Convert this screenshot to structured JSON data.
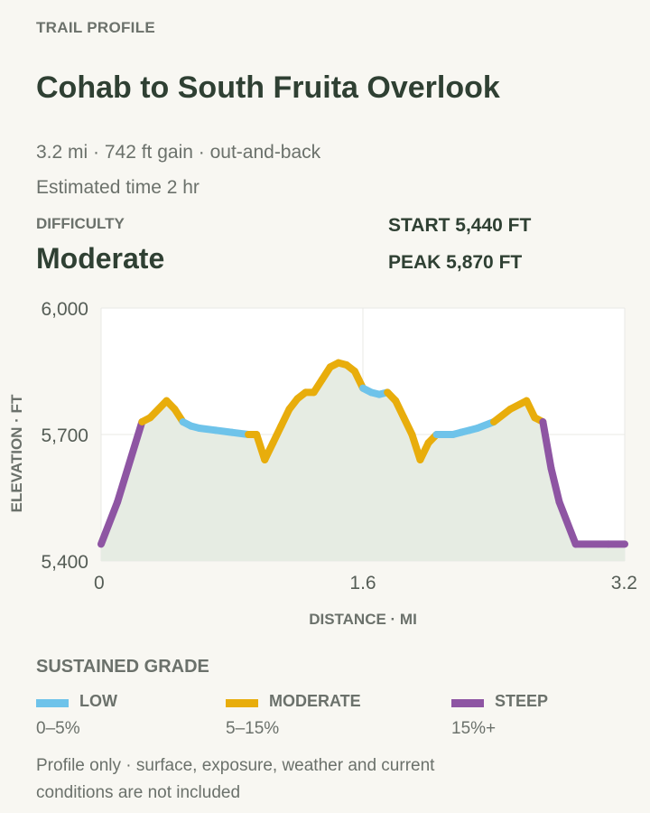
{
  "header": {
    "eyebrow": "TRAIL PROFILE",
    "title": "Cohab to South Fruita Overlook",
    "stats_line": "3.2 mi · 742 ft gain · out-and-back",
    "time_line": "Estimated time 2 hr"
  },
  "difficulty": {
    "label": "DIFFICULTY",
    "value": "Moderate"
  },
  "summary": {
    "start": "START 5,440 FT",
    "peak": "PEAK 5,870 FT"
  },
  "colors": {
    "low": "#6ec3ea",
    "moderate": "#e8ad0c",
    "steep": "#8e55a3",
    "fill": "#e6ece3"
  },
  "chart_data": {
    "type": "area",
    "title": "",
    "xlabel": "DISTANCE · MI",
    "ylabel": "ELEVATION · FT",
    "xlim": [
      0,
      3.2
    ],
    "ylim": [
      5400,
      6000
    ],
    "x_ticks": [
      0,
      1.6,
      3.2
    ],
    "x_tick_labels": [
      "0",
      "1.6",
      "3.2"
    ],
    "y_ticks": [
      5400,
      5700,
      6000
    ],
    "y_tick_labels": [
      "5,400",
      "5,700",
      "6,000"
    ],
    "grid": true,
    "series": [
      {
        "x": [
          0,
          0.1,
          0.25,
          0.3,
          0.4,
          0.45,
          0.5,
          0.55,
          0.6,
          0.7,
          0.8,
          0.9,
          0.95,
          1.0,
          1.05,
          1.1,
          1.15,
          1.2,
          1.25,
          1.3,
          1.35,
          1.4,
          1.45,
          1.5,
          1.55,
          1.6,
          1.65,
          1.7,
          1.75,
          1.8,
          1.85,
          1.9,
          1.95,
          2.0,
          2.05,
          2.1,
          2.15,
          2.2,
          2.25,
          2.3,
          2.4,
          2.5,
          2.6,
          2.65,
          2.7,
          2.75,
          2.8,
          2.9,
          3.1,
          3.2
        ],
        "y": [
          5440,
          5540,
          5730,
          5740,
          5780,
          5760,
          5730,
          5720,
          5715,
          5710,
          5705,
          5700,
          5700,
          5640,
          5680,
          5720,
          5760,
          5785,
          5800,
          5800,
          5830,
          5860,
          5870,
          5865,
          5850,
          5810,
          5800,
          5795,
          5800,
          5780,
          5740,
          5700,
          5640,
          5680,
          5700,
          5700,
          5700,
          5705,
          5710,
          5715,
          5730,
          5760,
          5780,
          5740,
          5730,
          5620,
          5540,
          5440,
          5440,
          5440
        ],
        "grade": [
          "steep",
          "steep",
          "moderate",
          "moderate",
          "moderate",
          "moderate",
          "low",
          "low",
          "low",
          "low",
          "low",
          "moderate",
          "moderate",
          "moderate",
          "moderate",
          "moderate",
          "moderate",
          "moderate",
          "moderate",
          "moderate",
          "moderate",
          "moderate",
          "moderate",
          "moderate",
          "moderate",
          "low",
          "low",
          "low",
          "moderate",
          "moderate",
          "moderate",
          "moderate",
          "moderate",
          "moderate",
          "low",
          "low",
          "low",
          "low",
          "low",
          "low",
          "moderate",
          "moderate",
          "moderate",
          "moderate",
          "steep",
          "steep",
          "steep",
          "steep",
          "steep"
        ]
      }
    ]
  },
  "legend": {
    "title": "SUSTAINED GRADE",
    "items": [
      {
        "key": "low",
        "name": "LOW",
        "range": "0–5%"
      },
      {
        "key": "moderate",
        "name": "MODERATE",
        "range": "5–15%"
      },
      {
        "key": "steep",
        "name": "STEEP",
        "range": "15%+"
      }
    ]
  },
  "note": "Profile only · surface, exposure, weather and current conditions are not included"
}
